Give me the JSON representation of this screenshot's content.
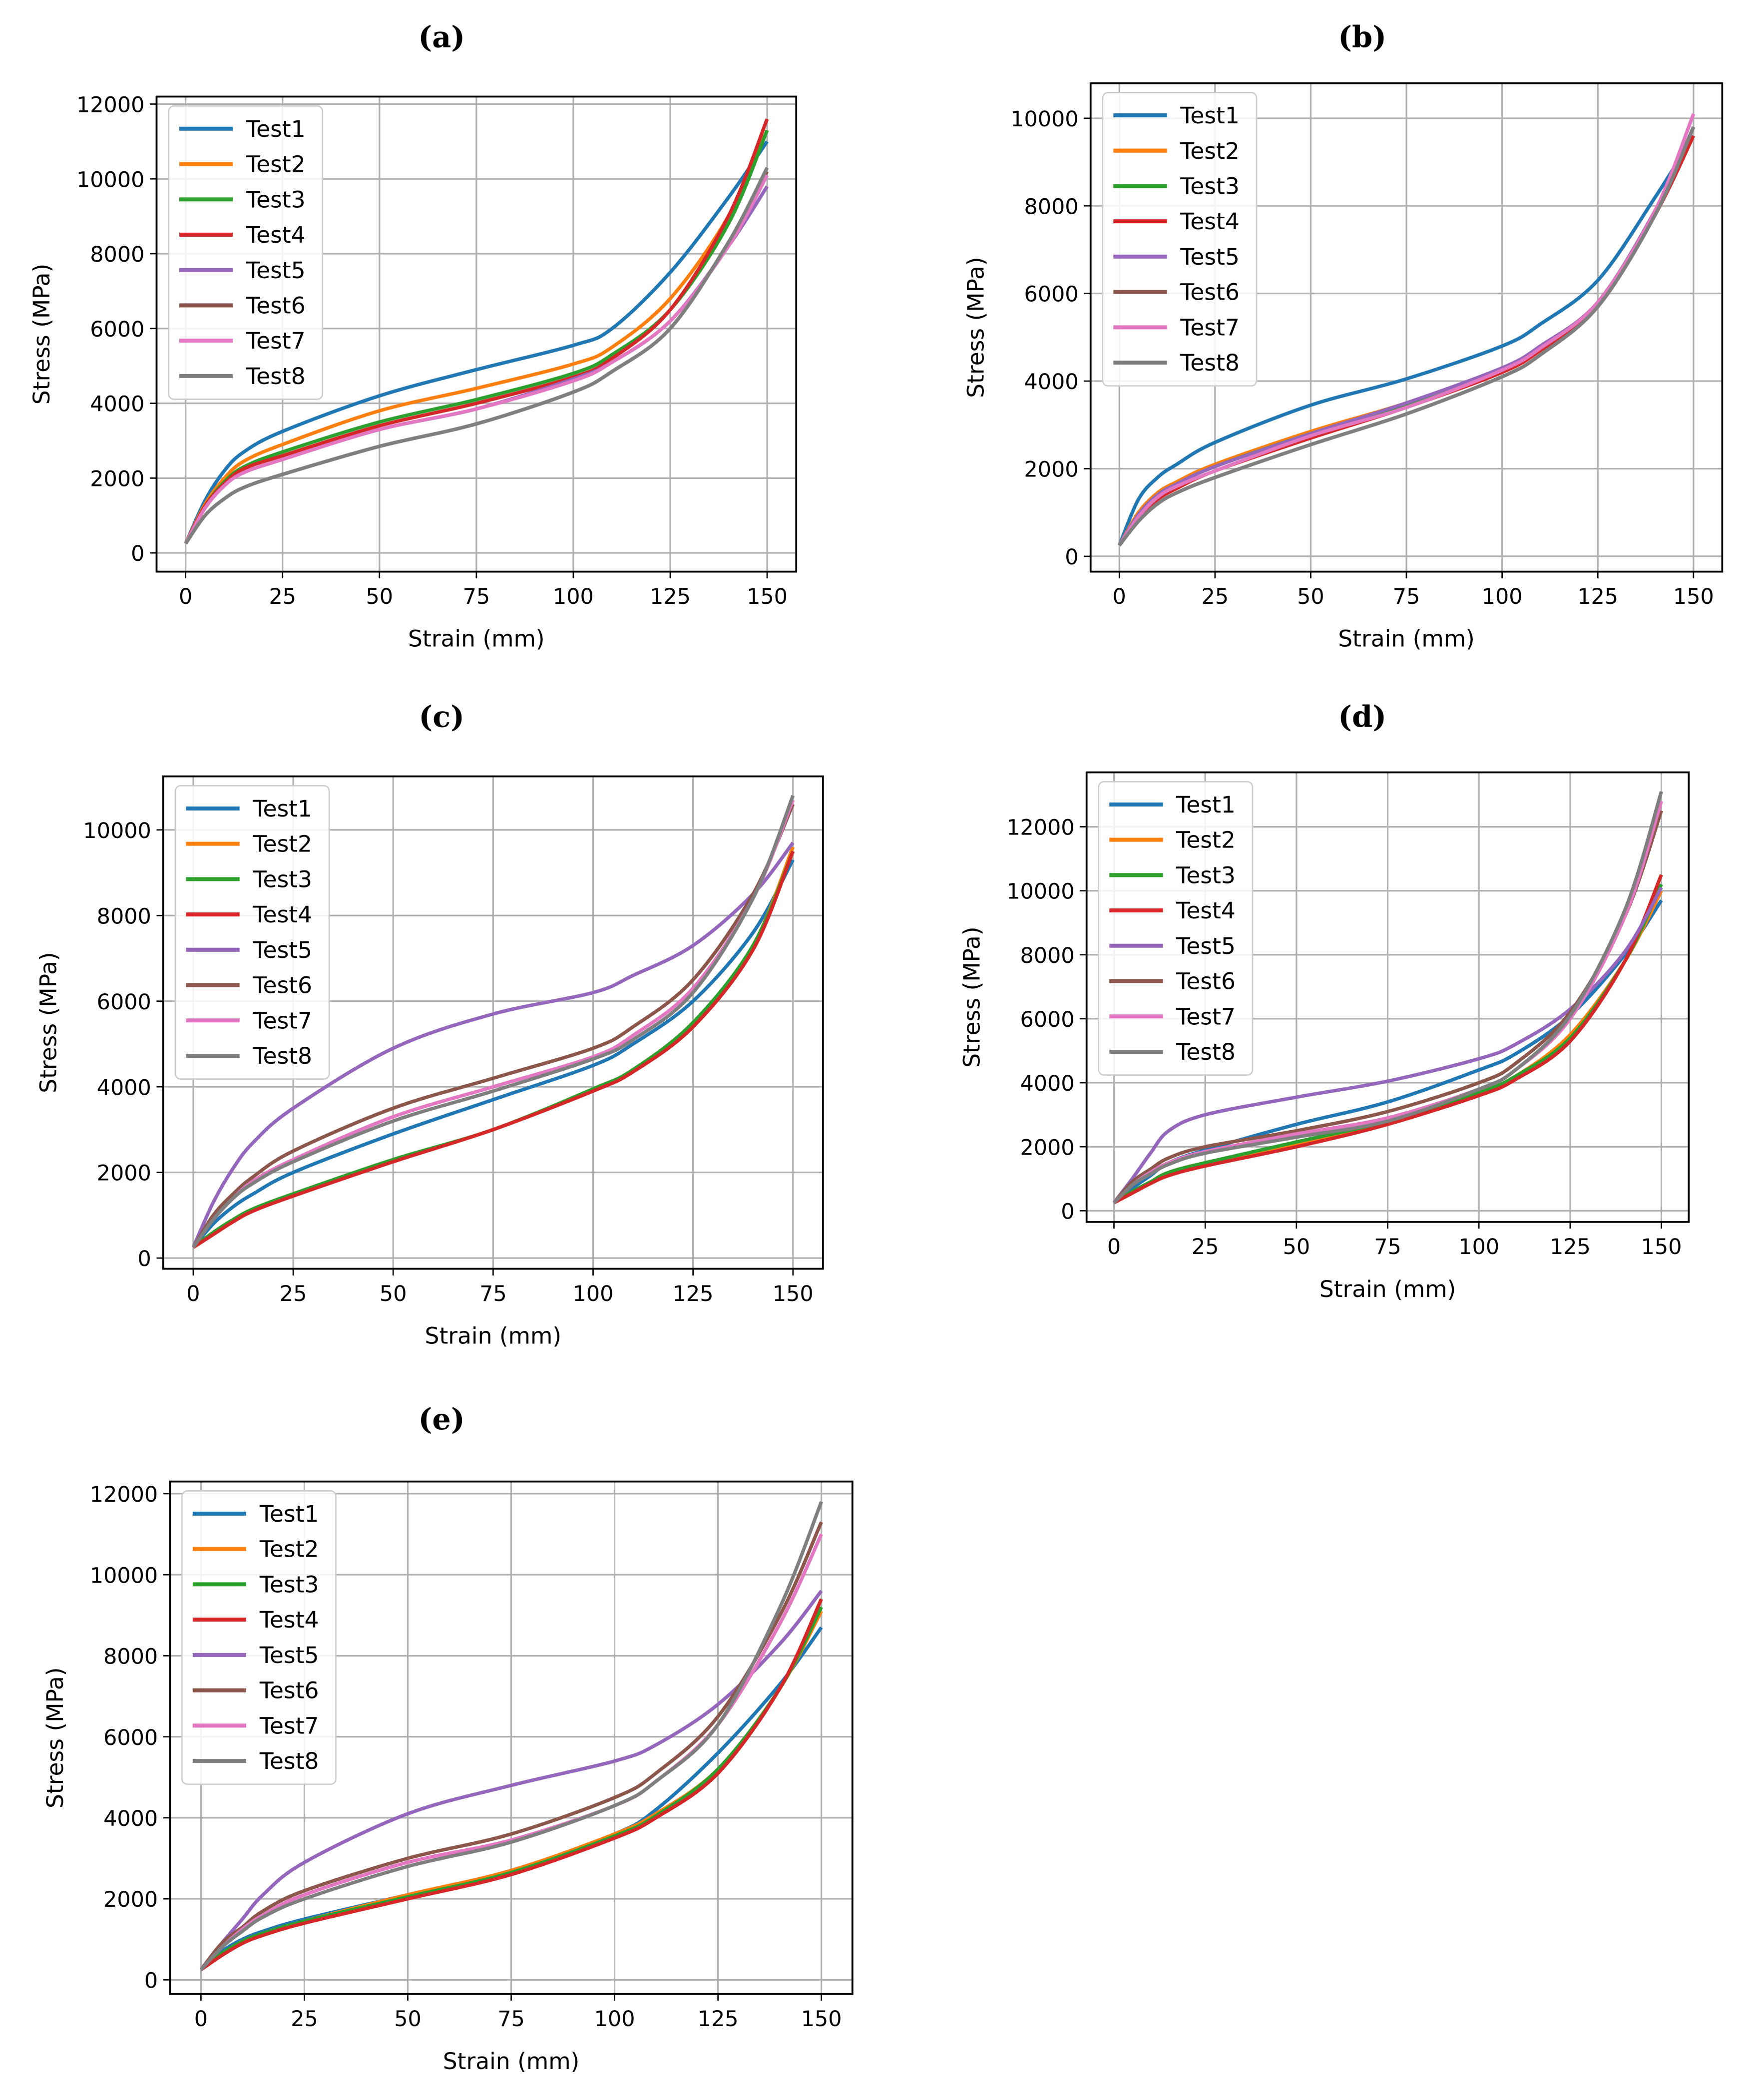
{
  "chart_data": [
    {
      "type": "line",
      "title": "(a)",
      "xlabel": "Strain (mm)",
      "ylabel": "Stress (MPa)",
      "xlim": [
        -7.5,
        157.5
      ],
      "ylim": [
        -500,
        12200
      ],
      "xticks": [
        0,
        25,
        50,
        75,
        100,
        125,
        150
      ],
      "yticks": [
        0,
        2000,
        4000,
        6000,
        8000,
        10000,
        12000
      ],
      "grid": true,
      "legend": "top-left",
      "x": [
        0,
        5,
        10,
        15,
        25,
        50,
        75,
        100,
        110,
        125,
        140,
        150
      ],
      "series": [
        {
          "name": "Test1",
          "color": "#1f77b4",
          "values": [
            250,
            1400,
            2200,
            2700,
            3250,
            4200,
            4900,
            5550,
            6000,
            7500,
            9500,
            11000
          ]
        },
        {
          "name": "Test2",
          "color": "#ff7f0e",
          "values": [
            250,
            1300,
            2000,
            2450,
            2900,
            3800,
            4400,
            5050,
            5500,
            6800,
            9000,
            11300
          ]
        },
        {
          "name": "Test3",
          "color": "#2ca02c",
          "values": [
            250,
            1250,
            1900,
            2300,
            2700,
            3500,
            4100,
            4800,
            5300,
            6500,
            8800,
            11300
          ]
        },
        {
          "name": "Test4",
          "color": "#d62728",
          "values": [
            250,
            1250,
            1850,
            2250,
            2600,
            3400,
            4000,
            4700,
            5200,
            6500,
            9000,
            11600
          ]
        },
        {
          "name": "Test5",
          "color": "#9467bd",
          "values": [
            250,
            1200,
            1800,
            2150,
            2500,
            3300,
            3850,
            4650,
            5100,
            6200,
            8200,
            9800
          ]
        },
        {
          "name": "Test6",
          "color": "#8c564b",
          "values": [
            250,
            1000,
            1450,
            1750,
            2100,
            2850,
            3450,
            4300,
            4850,
            6000,
            8300,
            10200
          ]
        },
        {
          "name": "Test7",
          "color": "#e377c2",
          "values": [
            250,
            1200,
            1800,
            2150,
            2500,
            3300,
            3850,
            4600,
            5100,
            6200,
            8200,
            10100
          ]
        },
        {
          "name": "Test8",
          "color": "#7f7f7f",
          "values": [
            250,
            1000,
            1450,
            1750,
            2100,
            2850,
            3450,
            4300,
            4850,
            6000,
            8300,
            10300
          ]
        }
      ]
    },
    {
      "type": "line",
      "title": "(b)",
      "xlabel": "Strain (mm)",
      "ylabel": "Stress (MPa)",
      "xlim": [
        -7.5,
        157.5
      ],
      "ylim": [
        -350,
        10800
      ],
      "xticks": [
        0,
        25,
        50,
        75,
        100,
        125,
        150
      ],
      "yticks": [
        0,
        2000,
        4000,
        6000,
        8000,
        10000
      ],
      "grid": true,
      "legend": "top-left",
      "x": [
        0,
        5,
        10,
        15,
        25,
        50,
        75,
        100,
        110,
        125,
        140,
        150
      ],
      "series": [
        {
          "name": "Test1",
          "color": "#1f77b4",
          "values": [
            250,
            1300,
            1800,
            2100,
            2600,
            3450,
            4050,
            4800,
            5300,
            6300,
            8200,
            9600
          ]
        },
        {
          "name": "Test2",
          "color": "#ff7f0e",
          "values": [
            250,
            1000,
            1450,
            1700,
            2100,
            2850,
            3500,
            4300,
            4800,
            5800,
            7900,
            9800
          ]
        },
        {
          "name": "Test3",
          "color": "#2ca02c",
          "values": [
            250,
            950,
            1400,
            1650,
            2050,
            2800,
            3450,
            4250,
            4750,
            5800,
            7900,
            9800
          ]
        },
        {
          "name": "Test4",
          "color": "#d62728",
          "values": [
            250,
            900,
            1300,
            1550,
            1950,
            2700,
            3400,
            4200,
            4700,
            5700,
            7800,
            9600
          ]
        },
        {
          "name": "Test5",
          "color": "#9467bd",
          "values": [
            250,
            950,
            1400,
            1650,
            2050,
            2800,
            3500,
            4300,
            4800,
            5800,
            7900,
            9800
          ]
        },
        {
          "name": "Test6",
          "color": "#8c564b",
          "values": [
            250,
            800,
            1200,
            1450,
            1800,
            2550,
            3250,
            4100,
            4600,
            5700,
            7800,
            9800
          ]
        },
        {
          "name": "Test7",
          "color": "#e377c2",
          "values": [
            250,
            900,
            1350,
            1600,
            1950,
            2750,
            3400,
            4250,
            4750,
            5800,
            7900,
            10100
          ]
        },
        {
          "name": "Test8",
          "color": "#7f7f7f",
          "values": [
            250,
            800,
            1200,
            1450,
            1800,
            2550,
            3250,
            4100,
            4600,
            5700,
            7800,
            9800
          ]
        }
      ]
    },
    {
      "type": "line",
      "title": "(c)",
      "xlabel": "Strain (mm)",
      "ylabel": "Stress (MPa)",
      "xlim": [
        -7.5,
        157.5
      ],
      "ylim": [
        -250,
        11250
      ],
      "xticks": [
        0,
        25,
        50,
        75,
        100,
        125,
        150
      ],
      "yticks": [
        0,
        2000,
        4000,
        6000,
        8000,
        10000
      ],
      "grid": true,
      "legend": "top-left",
      "x": [
        0,
        5,
        10,
        15,
        25,
        50,
        75,
        100,
        110,
        125,
        140,
        150
      ],
      "series": [
        {
          "name": "Test1",
          "color": "#1f77b4",
          "values": [
            250,
            800,
            1200,
            1500,
            2000,
            2900,
            3700,
            4500,
            5000,
            6000,
            7600,
            9300
          ]
        },
        {
          "name": "Test2",
          "color": "#ff7f0e",
          "values": [
            250,
            600,
            900,
            1150,
            1500,
            2300,
            3000,
            3950,
            4400,
            5500,
            7300,
            9600
          ]
        },
        {
          "name": "Test3",
          "color": "#2ca02c",
          "values": [
            250,
            600,
            900,
            1150,
            1500,
            2300,
            3000,
            3950,
            4400,
            5500,
            7300,
            9500
          ]
        },
        {
          "name": "Test4",
          "color": "#d62728",
          "values": [
            250,
            550,
            850,
            1100,
            1450,
            2250,
            3000,
            3900,
            4350,
            5400,
            7200,
            9500
          ]
        },
        {
          "name": "Test5",
          "color": "#9467bd",
          "values": [
            250,
            1300,
            2100,
            2700,
            3500,
            4900,
            5700,
            6200,
            6600,
            7300,
            8500,
            9700
          ]
        },
        {
          "name": "Test6",
          "color": "#8c564b",
          "values": [
            250,
            1000,
            1500,
            1900,
            2500,
            3500,
            4200,
            4900,
            5400,
            6500,
            8500,
            10600
          ]
        },
        {
          "name": "Test7",
          "color": "#e377c2",
          "values": [
            250,
            900,
            1400,
            1800,
            2300,
            3300,
            4000,
            4700,
            5200,
            6300,
            8400,
            10700
          ]
        },
        {
          "name": "Test8",
          "color": "#7f7f7f",
          "values": [
            250,
            900,
            1400,
            1750,
            2250,
            3200,
            3900,
            4650,
            5100,
            6200,
            8400,
            10800
          ]
        }
      ]
    },
    {
      "type": "line",
      "title": "(d)",
      "xlabel": "Strain (mm)",
      "ylabel": "Stress (MPa)",
      "xlim": [
        -7.5,
        157.5
      ],
      "ylim": [
        -350,
        13700
      ],
      "xticks": [
        0,
        25,
        50,
        75,
        100,
        125,
        150
      ],
      "yticks": [
        0,
        2000,
        4000,
        6000,
        8000,
        10000,
        12000
      ],
      "grid": true,
      "legend": "top-left",
      "x": [
        0,
        5,
        10,
        15,
        25,
        50,
        75,
        100,
        110,
        125,
        140,
        150
      ],
      "series": [
        {
          "name": "Test1",
          "color": "#1f77b4",
          "values": [
            250,
            700,
            1100,
            1500,
            1900,
            2700,
            3400,
            4400,
            4900,
            6100,
            8000,
            9700
          ]
        },
        {
          "name": "Test2",
          "color": "#ff7f0e",
          "values": [
            250,
            600,
            900,
            1200,
            1500,
            2100,
            2800,
            3700,
            4200,
            5500,
            7800,
            10000
          ]
        },
        {
          "name": "Test3",
          "color": "#2ca02c",
          "values": [
            250,
            600,
            900,
            1200,
            1500,
            2150,
            2800,
            3700,
            4200,
            5400,
            7800,
            10200
          ]
        },
        {
          "name": "Test4",
          "color": "#d62728",
          "values": [
            250,
            550,
            850,
            1100,
            1400,
            2000,
            2700,
            3600,
            4100,
            5300,
            7800,
            10500
          ]
        },
        {
          "name": "Test5",
          "color": "#9467bd",
          "values": [
            250,
            1000,
            1800,
            2500,
            3000,
            3550,
            4050,
            4750,
            5200,
            6300,
            8100,
            10100
          ]
        },
        {
          "name": "Test6",
          "color": "#8c564b",
          "values": [
            250,
            900,
            1300,
            1650,
            2000,
            2500,
            3100,
            4000,
            4600,
            6200,
            9200,
            12500
          ]
        },
        {
          "name": "Test7",
          "color": "#e377c2",
          "values": [
            250,
            800,
            1200,
            1500,
            1850,
            2400,
            2900,
            3800,
            4400,
            6000,
            9200,
            12800
          ]
        },
        {
          "name": "Test8",
          "color": "#7f7f7f",
          "values": [
            250,
            800,
            1150,
            1450,
            1800,
            2300,
            2800,
            3800,
            4400,
            6100,
            9400,
            13100
          ]
        }
      ]
    },
    {
      "type": "line",
      "title": "(e)",
      "xlabel": "Strain (mm)",
      "ylabel": "Stress (MPa)",
      "xlim": [
        -7.5,
        157.5
      ],
      "ylim": [
        -350,
        12300
      ],
      "xticks": [
        0,
        25,
        50,
        75,
        100,
        125,
        150
      ],
      "yticks": [
        0,
        2000,
        4000,
        6000,
        8000,
        10000,
        12000
      ],
      "grid": true,
      "legend": "top-left",
      "x": [
        0,
        5,
        10,
        15,
        25,
        50,
        75,
        100,
        110,
        125,
        140,
        150
      ],
      "series": [
        {
          "name": "Test1",
          "color": "#1f77b4",
          "values": [
            250,
            700,
            1000,
            1200,
            1500,
            2100,
            2700,
            3600,
            4200,
            5600,
            7300,
            8700
          ]
        },
        {
          "name": "Test2",
          "color": "#ff7f0e",
          "values": [
            250,
            650,
            950,
            1150,
            1450,
            2100,
            2700,
            3600,
            4100,
            5200,
            7200,
            9100
          ]
        },
        {
          "name": "Test3",
          "color": "#2ca02c",
          "values": [
            250,
            650,
            950,
            1150,
            1450,
            2050,
            2650,
            3550,
            4050,
            5200,
            7200,
            9200
          ]
        },
        {
          "name": "Test4",
          "color": "#d62728",
          "values": [
            250,
            600,
            900,
            1100,
            1400,
            2000,
            2600,
            3500,
            4000,
            5100,
            7200,
            9400
          ]
        },
        {
          "name": "Test5",
          "color": "#9467bd",
          "values": [
            250,
            900,
            1500,
            2100,
            2900,
            4100,
            4800,
            5400,
            5800,
            6800,
            8300,
            9600
          ]
        },
        {
          "name": "Test6",
          "color": "#8c564b",
          "values": [
            250,
            900,
            1300,
            1700,
            2200,
            3000,
            3600,
            4500,
            5100,
            6500,
            9000,
            11300
          ]
        },
        {
          "name": "Test7",
          "color": "#e377c2",
          "values": [
            250,
            800,
            1250,
            1600,
            2100,
            2900,
            3450,
            4300,
            4900,
            6300,
            8800,
            11000
          ]
        },
        {
          "name": "Test8",
          "color": "#7f7f7f",
          "values": [
            250,
            800,
            1200,
            1550,
            2000,
            2800,
            3400,
            4300,
            4900,
            6300,
            9200,
            11800
          ]
        }
      ]
    }
  ]
}
